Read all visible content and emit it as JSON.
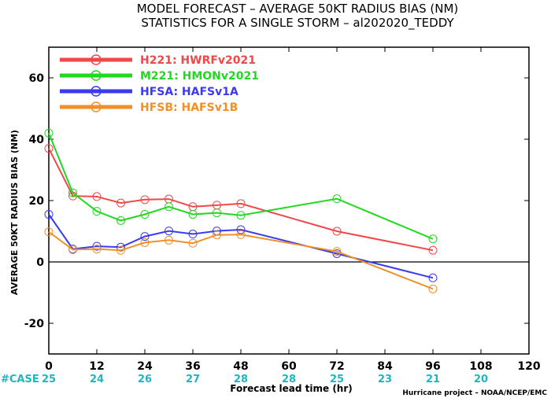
{
  "title_line1": "MODEL FORECAST – AVERAGE 50KT RADIUS BIAS (NM)",
  "title_line2": "STATISTICS FOR A SINGLE STORM – al202020_TEDDY",
  "credit": "Hurricane project – NOAA/NCEP/EMC",
  "case_label": "#CASE",
  "case_counts": [
    "25",
    "24",
    "26",
    "27",
    "28",
    "28",
    "25",
    "23",
    "21",
    "20"
  ],
  "case_hours": [
    0,
    12,
    24,
    36,
    48,
    60,
    72,
    84,
    96,
    108
  ],
  "colors": {
    "red": "#f04848",
    "green": "#22d822",
    "blue": "#3a3af0",
    "orange": "#f0902a",
    "cyan": "#1ab8c0"
  },
  "chart_data": {
    "type": "line",
    "xlabel": "Forecast lead time (hr)",
    "ylabel": "AVERAGE 50KT RADIUS BIAS (NM)",
    "xlim": [
      0,
      120
    ],
    "ylim": [
      -30,
      70
    ],
    "xticks": [
      "0",
      "12",
      "24",
      "36",
      "48",
      "60",
      "72",
      "84",
      "96",
      "108",
      "120"
    ],
    "yticks": [
      "-20",
      "0",
      "20",
      "40",
      "60"
    ],
    "zero_line": true,
    "legend_position": "top-left",
    "series": [
      {
        "name": "H221: HWRFv2021",
        "color": "#f04848",
        "x": [
          0,
          6,
          12,
          18,
          24,
          30,
          36,
          42,
          48,
          72,
          96
        ],
        "y": [
          37,
          21.5,
          21.3,
          19.2,
          20.3,
          20.5,
          18,
          18.5,
          19,
          10,
          3.8
        ]
      },
      {
        "name": "M221: HMONv2021",
        "color": "#22d822",
        "x": [
          0,
          6,
          12,
          18,
          24,
          30,
          36,
          42,
          48,
          72,
          96
        ],
        "y": [
          42,
          22.5,
          16.5,
          13.5,
          15.5,
          18,
          15.5,
          16,
          15.2,
          20.6,
          7.5
        ]
      },
      {
        "name": "HFSA: HAFSv1A",
        "color": "#3a3af0",
        "x": [
          0,
          6,
          12,
          18,
          24,
          30,
          36,
          42,
          48,
          72,
          96
        ],
        "y": [
          15.5,
          4.2,
          5.1,
          4.8,
          8.3,
          10.1,
          9.1,
          10.1,
          10.5,
          2.7,
          -5.2
        ]
      },
      {
        "name": "HFSB: HAFSv1B",
        "color": "#f0902a",
        "x": [
          0,
          6,
          12,
          18,
          24,
          30,
          36,
          42,
          48,
          72,
          96
        ],
        "y": [
          9.8,
          4,
          4.2,
          3.8,
          6.3,
          7.1,
          6.1,
          8.8,
          8.9,
          3.4,
          -8.8
        ]
      }
    ]
  }
}
